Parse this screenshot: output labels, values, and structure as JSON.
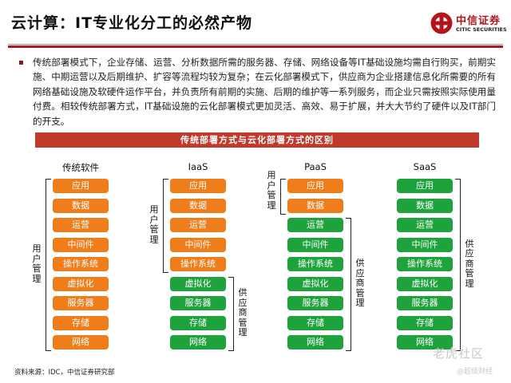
{
  "title": "云计算：IT专业化分工的必然产物",
  "logo": {
    "cn": "中信证券",
    "en": "CITIC SECURITIES",
    "brand_color": "#b3151c"
  },
  "body_text": "传统部署模式下，企业存储、运营、分析数据所需的服务器、存储、网络设备等IT基础设施均需自行购买，前期实施、中期运营以及后期维护、扩容等流程均较为复杂；在云化部署模式下，供应商为企业搭建信息化所需要的所有网络基础设施及软硬件运作平台，并负责所有前期的实施、后期的维护等一系列服务，而企业只需按照实际使用量付费。相较传统部署方式，IT基础设施的云化部署模式更加灵活、高效、易于扩展，并大大节约了硬件以及IT部门的开支。",
  "banner": "传统部署方式与云化部署方式的区别",
  "colors": {
    "user_managed": "#ee7d1a",
    "provider_managed": "#1ea33c",
    "banner": "#c0392b"
  },
  "columns": [
    {
      "name": "传统软件",
      "user_count": 9,
      "layers": [
        "应用",
        "数据",
        "运营",
        "中间件",
        "操作系统",
        "虚拟化",
        "服务器",
        "存储",
        "网络"
      ]
    },
    {
      "name": "IaaS",
      "user_count": 5,
      "layers": [
        "应用",
        "数据",
        "运营",
        "中间件",
        "操作系统",
        "虚拟化",
        "服务器",
        "存储",
        "网络"
      ]
    },
    {
      "name": "PaaS",
      "user_count": 2,
      "layers": [
        "应用",
        "数据",
        "运营",
        "中间件",
        "操作系统",
        "虚拟化",
        "服务器",
        "存储",
        "网络"
      ]
    },
    {
      "name": "SaaS",
      "user_count": 0,
      "layers": [
        "应用",
        "数据",
        "运营",
        "中间件",
        "操作系统",
        "虚拟化",
        "服务器",
        "存储",
        "网络"
      ]
    }
  ],
  "labels": {
    "user": "用户管理",
    "provider": "供应商管理"
  },
  "source": "资料来源：IDC，中信证券研究部",
  "watermark": {
    "main": "老虎社区",
    "sub": "@超级财经"
  }
}
